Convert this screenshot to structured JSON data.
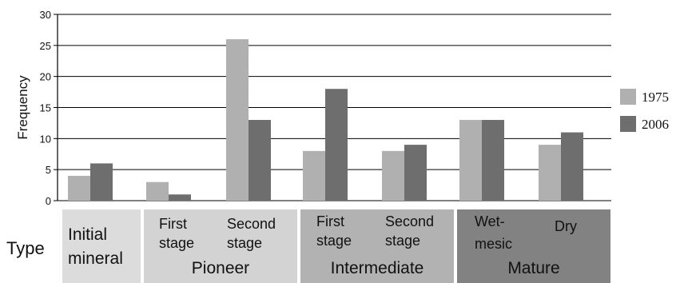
{
  "chart_data": {
    "type": "bar",
    "title": "",
    "xlabel": "Type",
    "ylabel": "Frequency",
    "ylim": [
      0,
      30
    ],
    "yticks": [
      0,
      5,
      10,
      15,
      20,
      25,
      30
    ],
    "grid": "horizontal",
    "legend_position": "right",
    "categories": [
      "Initial mineral",
      "First stage",
      "Second stage",
      "First stage",
      "Second stage",
      "Wet-mesic",
      "Dry"
    ],
    "series": [
      {
        "name": "1975",
        "color": "#b0b0b0",
        "values": [
          4,
          3,
          26,
          8,
          8,
          13,
          9
        ]
      },
      {
        "name": "2006",
        "color": "#6e6e6e",
        "values": [
          6,
          1,
          13,
          18,
          9,
          13,
          11
        ]
      }
    ],
    "groups": [
      {
        "name": "Initial mineral",
        "color": "#dcdcdc",
        "categories": [
          "Initial mineral"
        ],
        "label_lines": [
          "Initial",
          "mineral"
        ]
      },
      {
        "name": "Pioneer",
        "color": "#d3d3d3",
        "categories": [
          [
            "First",
            "stage"
          ],
          [
            "Second",
            "stage"
          ]
        ]
      },
      {
        "name": "Intermediate",
        "color": "#b2b2b2",
        "categories": [
          [
            "First",
            "stage"
          ],
          [
            "Second",
            "stage"
          ]
        ]
      },
      {
        "name": "Mature",
        "color": "#828282",
        "categories": [
          [
            "Wet-",
            "mesic"
          ],
          [
            "Dry"
          ]
        ]
      }
    ]
  }
}
